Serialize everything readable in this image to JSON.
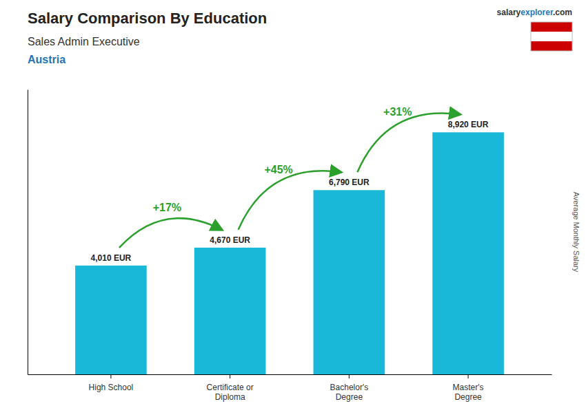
{
  "chart_data": {
    "type": "bar",
    "title": "Salary Comparison By Education",
    "subtitle": "Sales Admin Executive",
    "country": "Austria",
    "source": [
      "salary",
      "explorer",
      ".com"
    ],
    "ylabel": "Average Monthly Salary",
    "categories": [
      "High School",
      "Certificate or\nDiploma",
      "Bachelor's\nDegree",
      "Master's\nDegree"
    ],
    "values": [
      4010,
      4670,
      6790,
      8920
    ],
    "value_labels": [
      "4,010 EUR",
      "4,670 EUR",
      "6,790 EUR",
      "8,920 EUR"
    ],
    "data_labels": true,
    "annotations": [
      "+17%",
      "+45%",
      "+31%"
    ],
    "color": "#1ab8d8",
    "ylim": [
      0,
      10500
    ],
    "grid": false,
    "tick_labels": "x"
  }
}
